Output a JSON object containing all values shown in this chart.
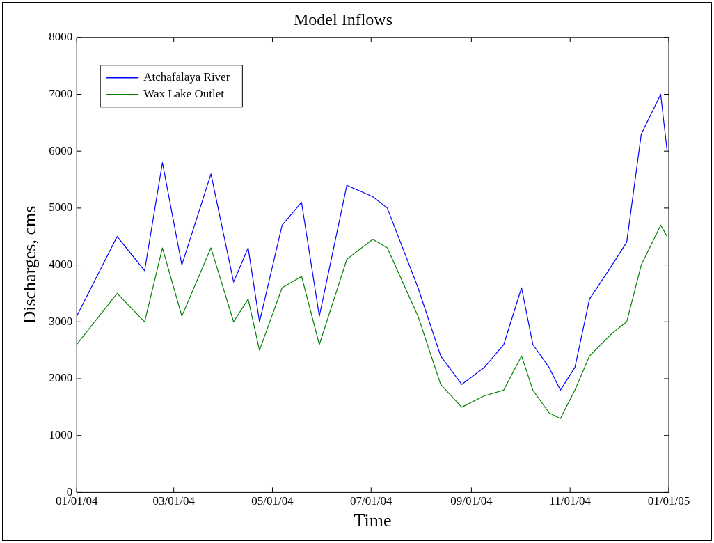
{
  "chart_data": {
    "type": "line",
    "title": "Model Inflows",
    "xlabel": "Time",
    "ylabel": "Discharges, cms",
    "x": [
      "2004-01-01",
      "2004-01-26",
      "2004-02-12",
      "2004-02-23",
      "2004-03-06",
      "2004-03-24",
      "2004-04-07",
      "2004-04-16",
      "2004-04-23",
      "2004-05-07",
      "2004-05-19",
      "2004-05-30",
      "2004-06-16",
      "2004-07-02",
      "2004-07-11",
      "2004-07-30",
      "2004-08-13",
      "2004-08-26",
      "2004-09-09",
      "2004-09-21",
      "2004-10-02",
      "2004-10-09",
      "2004-10-19",
      "2004-10-26",
      "2004-11-04",
      "2004-11-13",
      "2004-11-27",
      "2004-12-06",
      "2004-12-15",
      "2004-12-27",
      "2004-12-31"
    ],
    "series": [
      {
        "name": "Atchafalaya River",
        "color": "#0000ff",
        "values": [
          3100,
          4500,
          3900,
          5800,
          4000,
          5600,
          3700,
          4300,
          3000,
          4700,
          5100,
          3100,
          5400,
          5200,
          5000,
          3600,
          2400,
          1900,
          2200,
          2600,
          3600,
          2600,
          2200,
          1800,
          2200,
          3400,
          4000,
          4400,
          6300,
          7000,
          6000
        ]
      },
      {
        "name": "Wax Lake Outlet",
        "color": "#008000",
        "values": [
          2600,
          3500,
          3000,
          4300,
          3100,
          4300,
          3000,
          3400,
          2500,
          3600,
          3800,
          2600,
          4100,
          4450,
          4300,
          3100,
          1900,
          1500,
          1700,
          1800,
          2400,
          1800,
          1400,
          1300,
          1800,
          2400,
          2800,
          3000,
          4000,
          4700,
          4500
        ]
      }
    ],
    "xlim": [
      "2004-01-01",
      "2005-01-01"
    ],
    "xticks": [
      {
        "value": "2004-01-01",
        "label": "01/01/04"
      },
      {
        "value": "2004-03-01",
        "label": "03/01/04"
      },
      {
        "value": "2004-05-01",
        "label": "05/01/04"
      },
      {
        "value": "2004-07-01",
        "label": "07/01/04"
      },
      {
        "value": "2004-09-01",
        "label": "09/01/04"
      },
      {
        "value": "2004-11-01",
        "label": "11/01/04"
      },
      {
        "value": "2005-01-01",
        "label": "01/01/05"
      }
    ],
    "ylim": [
      0,
      8000
    ],
    "yticks": [
      0,
      1000,
      2000,
      3000,
      4000,
      5000,
      6000,
      7000,
      8000
    ],
    "legend": "top left",
    "marker": "none",
    "line_style": "solid"
  }
}
